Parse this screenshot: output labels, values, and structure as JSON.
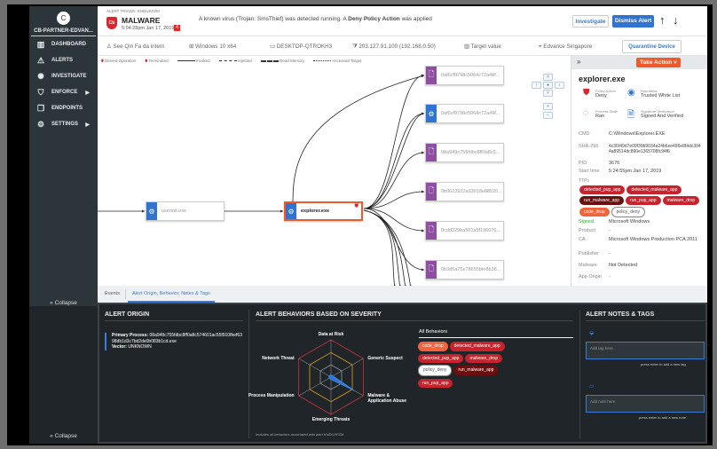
{
  "sidebar": {
    "avatar": "C",
    "org": "CB-PARTNER-EDVAN...",
    "items": [
      {
        "label": "DASHBOARD",
        "icon": "dashboard-icon"
      },
      {
        "label": "ALERTS",
        "icon": "warning-icon"
      },
      {
        "label": "INVESTIGATE",
        "icon": "investigate-icon"
      },
      {
        "label": "ENFORCE",
        "icon": "shield-icon",
        "submenu": true
      },
      {
        "label": "ENDPOINTS",
        "icon": "endpoints-icon"
      },
      {
        "label": "SETTINGS",
        "icon": "gear-icon",
        "submenu": true
      }
    ],
    "collapse": "Collapse",
    "collapse2": "Collapse"
  },
  "header": {
    "breadcrumb": "ALERT TRIAGE: KNDUXFZM",
    "logo": "Cb",
    "type": "MALWARE",
    "time": "5:04:28pm Jan 17, 2019",
    "severity": "4",
    "message_pre": "A known virus (Trojan: SmsThief) was detected running. A ",
    "message_bold": "Deny Policy Action",
    "message_post": " was applied",
    "investigate": "Investigate",
    "dismiss": "Dismiss Alert",
    "up": "↑",
    "down": "↓"
  },
  "info": {
    "user": "See Qin Fa da intern",
    "os": "Windows 10 x64",
    "device": "DESKTOP-QTROKH3",
    "ip": "203.127.91.100 (192.168.0.50)",
    "target": "Target value",
    "location": "Edvance Singapore",
    "quarantine": "Quarantine Device"
  },
  "legend": {
    "denied": "Denied Operation",
    "terminated": "Terminated",
    "invoked": "Invoked",
    "injected": "Injected",
    "read": "Read Memory",
    "accessed": "Accessed Target"
  },
  "graph": {
    "nodes": [
      {
        "id": "userinit",
        "label": "userinit.exe",
        "kind": "process"
      },
      {
        "id": "explorer",
        "label": "explorer.exe",
        "kind": "process",
        "selected": true
      },
      {
        "id": "c1",
        "label": "0af6cf9798c5064c72a49f...",
        "kind": "file"
      },
      {
        "id": "c2",
        "label": "0af6cf9798c5064c72a49f...",
        "kind": "process"
      },
      {
        "id": "c3",
        "label": "08a949c755fdbc8ff0a8c5...",
        "kind": "file"
      },
      {
        "id": "c4",
        "label": "0b0623922a93018e88520...",
        "kind": "file"
      },
      {
        "id": "c5",
        "label": "0cdd329ba501a5f196076...",
        "kind": "file"
      },
      {
        "id": "c6",
        "label": "0b3d5a75e78655bfe8b36...",
        "kind": "file"
      }
    ],
    "colors": {
      "process": "#2f74d0",
      "file": "#8e4fa0",
      "selected": "#f05a28"
    }
  },
  "panel": {
    "take_action": "Take Action",
    "title": "explorer.exe",
    "policy_action_k": "Policy Action",
    "policy_action": "Deny",
    "reputation_k": "Reputation",
    "reputation": "Trusted White List",
    "state_k": "Process State",
    "state": "Ran",
    "sig_k": "Signature Verification",
    "sig": "Signed And Verified",
    "cmd_k": "CMD",
    "cmd": "C:\\Windows\\Explorer.EXE",
    "sha_k": "SHA-256",
    "sha": "4c36f49d7e09f39b9034a24b6ee496e8f4dc3044a89514dc890e1365708fc94f6",
    "pid_k": "PID",
    "pid": "3676",
    "start_k": "Start time",
    "start": "5:24:55pm Jan 17, 2019",
    "ttps_k": "TTPs",
    "ttps": [
      {
        "t": "detected_pup_app",
        "c": "#c8232c"
      },
      {
        "t": "detected_malware_app",
        "c": "#c8232c"
      },
      {
        "t": "run_malware_app",
        "c": "#6b0e0e"
      },
      {
        "t": "run_pup_app",
        "c": "#c8232c"
      },
      {
        "t": "malware_drop",
        "c": "#c8232c"
      },
      {
        "t": "code_drop",
        "c": "#f0643c"
      },
      {
        "t": "policy_deny",
        "c": "#ffffff"
      }
    ],
    "signed_k": "Signed",
    "signed": "Microsoft Windows",
    "product_k": "Product",
    "product": "-",
    "ca_k": "CA",
    "ca": "Microsoft Windows Production PCA 2011",
    "publisher_k": "Publisher",
    "publisher": "-",
    "malware_k": "Malware",
    "malware": "Not Detected",
    "origin_k": "App Origin",
    "origin": "-"
  },
  "tabs": {
    "events": "Events",
    "origin": "Alert Origin, Behavior, Notes & Tags"
  },
  "bottom": {
    "origin_title": "ALERT ORIGIN",
    "primary_k": "Primary Process:",
    "primary": "08a949c755fdbc8ff0a8c574601ac55f910fbef6398db1d3c7bd2de0b083b1cd.exe",
    "vector_k": "Vector:",
    "vector": "UNKNOWN",
    "behaviors_title": "ALERT BEHAVIORS BASED ON SEVERITY",
    "all": "All Behaviors",
    "footnote": "Includes all behaviors associated with alert KNDUXFZM",
    "behavior_tags": [
      {
        "t": "code_drop",
        "c": "#f0643c"
      },
      {
        "t": "detected_malware_app",
        "c": "#c8232c"
      },
      {
        "t": "detected_pup_app",
        "c": "#c8232c"
      },
      {
        "t": "malware_drop",
        "c": "#c8232c"
      },
      {
        "t": "policy_deny",
        "c": "#ffffff"
      },
      {
        "t": "run_malware_app",
        "c": "#6b0e0e"
      },
      {
        "t": "run_pup_app",
        "c": "#c8232c"
      }
    ],
    "radar": {
      "axes": [
        "Data at Risk",
        "Generic Suspect",
        "Malware & Application Abuse",
        "Emerging Threats",
        "Process Manipulation",
        "Network Threat"
      ],
      "values": [
        0,
        0,
        0.72,
        0,
        0,
        0
      ]
    },
    "notes_title": "ALERT NOTES & TAGS",
    "tag_placeholder": "Add tag here",
    "tag_hint": "press enter to add a new tag",
    "note_placeholder": "Add note here",
    "note_hint": "press enter to add a new note"
  }
}
